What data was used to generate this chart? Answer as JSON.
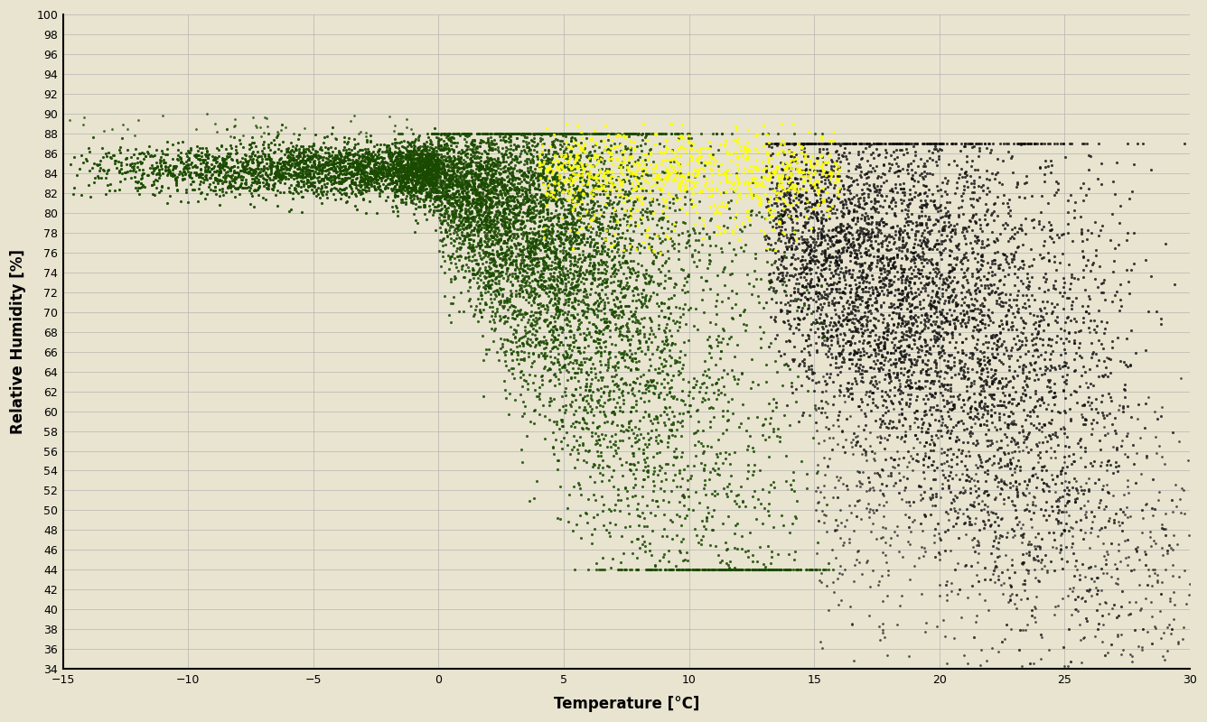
{
  "title": "",
  "xlabel": "Temperature [°C]",
  "ylabel": "Relative Humidity [%]",
  "xlim": [
    -15,
    30
  ],
  "ylim": [
    34,
    100
  ],
  "xticks": [
    -15,
    -10,
    -5,
    0,
    5,
    10,
    15,
    20,
    25,
    30
  ],
  "yticks": [
    34,
    36,
    38,
    40,
    42,
    44,
    46,
    48,
    50,
    52,
    54,
    56,
    58,
    60,
    62,
    64,
    66,
    68,
    70,
    72,
    74,
    76,
    78,
    80,
    82,
    84,
    86,
    88,
    90,
    92,
    94,
    96,
    98,
    100
  ],
  "background_color": "#e8e4d0",
  "grid_color": "#aaaaaa",
  "dark_green": "#1a4a00",
  "yellow": "#ffff00",
  "dark_color": "#101010",
  "seed": 42
}
